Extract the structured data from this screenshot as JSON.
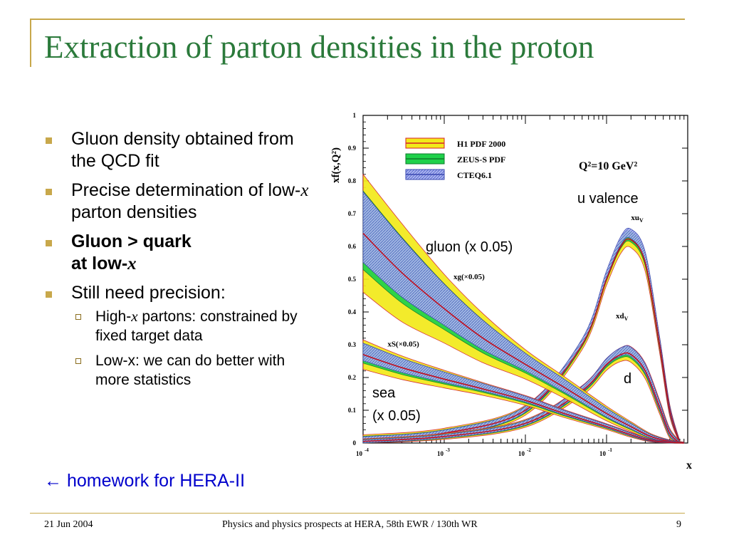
{
  "slide": {
    "title": "Extraction of parton densities in the proton",
    "bullets": [
      {
        "text": "Gluon density obtained from the QCD fit"
      },
      {
        "pre": "Precise determination of low-",
        "em": "x",
        "post": " parton densities"
      },
      {
        "line1": "Gluon > quark",
        "line2": "at low-",
        "em": "x"
      },
      {
        "text": "Still need precision:"
      }
    ],
    "sub_bullets": [
      {
        "pre": "High-",
        "em": "x",
        "post": " partons: constrained by fixed target data"
      },
      {
        "text": "Low-x: we can do better with more statistics"
      }
    ],
    "homework": {
      "arrow": "←",
      "text": "homework for HERA-II"
    },
    "annotations": {
      "u_valence": "u valence",
      "gluon": "gluon (x 0.05)",
      "d": "d",
      "sea_1": "sea",
      "sea_2": "(x 0.05)"
    },
    "footer": {
      "date": "21 Jun 2004",
      "center": "Physics and physics prospects at HERA, 58th EWR / 130th WR",
      "page": "9"
    },
    "colors": {
      "title": "#2b7a3b",
      "accent": "#c8a84b",
      "homework": "#0000cc"
    }
  },
  "chart_data": {
    "type": "line",
    "xscale": "log",
    "xlim": [
      0.0001,
      1
    ],
    "ylim": [
      0,
      1
    ],
    "x_ticks": [
      {
        "v": 0.0001,
        "base": "10",
        "exp": "-4"
      },
      {
        "v": 0.001,
        "base": "10",
        "exp": "-3"
      },
      {
        "v": 0.01,
        "base": "10",
        "exp": "-2"
      },
      {
        "v": 0.1,
        "base": "10",
        "exp": "-1"
      }
    ],
    "y_ticks": [
      0,
      0.1,
      0.2,
      0.3,
      0.4,
      0.5,
      0.6,
      0.7,
      0.8,
      0.9,
      1
    ],
    "y_tick_labels": [
      "0",
      "0.1",
      "0.2",
      "0.3",
      "0.4",
      "0.5",
      "0.6",
      "0.7",
      "0.8",
      "0.9",
      "1"
    ],
    "xlabel": "x",
    "ylabel": "xf(x,Q²)",
    "q2_label": "Q²=10 GeV²",
    "legend": [
      {
        "name": "H1 PDF 2000",
        "fill": "#f2ea1a",
        "line": "#d4202a"
      },
      {
        "name": "ZEUS-S PDF",
        "fill": "#1fd14a",
        "line": "#0e7a2a"
      },
      {
        "name": "CTEQ6.1",
        "fill": "#9aa8ee",
        "line": "#3a48b0"
      }
    ],
    "legend_position": "top-center",
    "curve_labels": [
      {
        "text": "xu",
        "sub": "V",
        "x": 0.2,
        "y": 0.68
      },
      {
        "text": "xd",
        "sub": "V",
        "x": 0.13,
        "y": 0.38
      },
      {
        "text": "xg(×0.05)",
        "x": 0.0013,
        "y": 0.5
      },
      {
        "text": "xS(×0.05)",
        "x": 0.0002,
        "y": 0.295
      }
    ],
    "series": [
      {
        "name": "xu_V",
        "x": [
          0.0001,
          0.001,
          0.01,
          0.05,
          0.1,
          0.15,
          0.2,
          0.3,
          0.45,
          0.6,
          0.8
        ],
        "y": [
          0.01,
          0.03,
          0.1,
          0.3,
          0.5,
          0.6,
          0.62,
          0.55,
          0.3,
          0.1,
          0.0
        ],
        "band": [
          0.01,
          0.01,
          0.01,
          0.01,
          0.012,
          0.014,
          0.016,
          0.018,
          0.016,
          0.012,
          0.004
        ]
      },
      {
        "name": "xd_V",
        "x": [
          0.0001,
          0.001,
          0.01,
          0.05,
          0.1,
          0.15,
          0.2,
          0.3,
          0.45,
          0.6,
          0.8
        ],
        "y": [
          0.005,
          0.02,
          0.06,
          0.16,
          0.24,
          0.27,
          0.27,
          0.22,
          0.11,
          0.03,
          0.0
        ],
        "band": [
          0.005,
          0.006,
          0.008,
          0.01,
          0.012,
          0.014,
          0.016,
          0.016,
          0.014,
          0.01,
          0.004
        ]
      },
      {
        "name": "xg(x0.05)",
        "x": [
          0.0001,
          0.0003,
          0.001,
          0.003,
          0.01,
          0.03,
          0.1,
          0.2,
          0.35,
          0.6,
          0.9
        ],
        "y": [
          0.64,
          0.52,
          0.41,
          0.32,
          0.24,
          0.17,
          0.09,
          0.05,
          0.02,
          0.005,
          0.0
        ],
        "band": [
          0.12,
          0.1,
          0.07,
          0.05,
          0.03,
          0.022,
          0.015,
          0.01,
          0.006,
          0.003,
          0.002
        ]
      },
      {
        "name": "xS(x0.05)",
        "x": [
          0.0001,
          0.0003,
          0.001,
          0.003,
          0.01,
          0.03,
          0.1,
          0.2,
          0.35,
          0.6,
          0.9
        ],
        "y": [
          0.27,
          0.23,
          0.195,
          0.165,
          0.13,
          0.09,
          0.05,
          0.025,
          0.008,
          0.002,
          0.0
        ],
        "band": [
          0.03,
          0.024,
          0.018,
          0.013,
          0.01,
          0.008,
          0.006,
          0.005,
          0.003,
          0.002,
          0.001
        ]
      }
    ]
  }
}
